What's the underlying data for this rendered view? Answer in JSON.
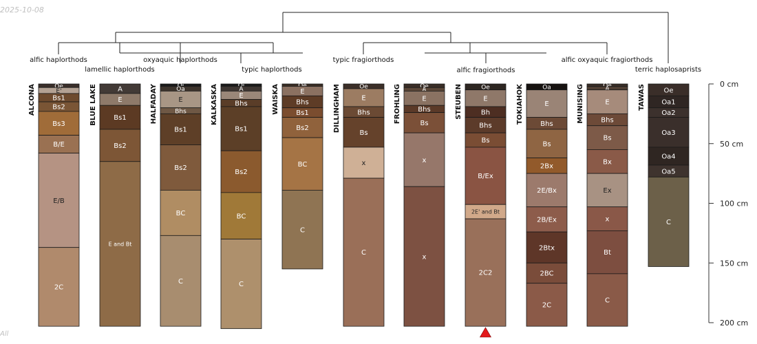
{
  "header": {
    "date": "2025-10-08"
  },
  "footer": {
    "text": "All"
  },
  "chart_data": {
    "type": "soil_profile_sketch",
    "title": "",
    "depth_axis": {
      "range": [
        0,
        200
      ],
      "unit": "cm",
      "ticks": [
        {
          "value": 0,
          "label": "0 cm"
        },
        {
          "value": 50,
          "label": "50 cm"
        },
        {
          "value": 100,
          "label": "100 cm"
        },
        {
          "value": 150,
          "label": "150 cm"
        },
        {
          "value": 200,
          "label": "200 cm"
        }
      ]
    },
    "marker": {
      "profile": "STEUBEN",
      "shape": "triangle",
      "color": "#e31a1c"
    },
    "taxa": [
      "alfic haplorthods",
      "lamellic haplorthods",
      "oxyaquic haplorthods",
      "typic haplorthods",
      "typic fragiorthods",
      "alfic fragiorthods",
      "alfic oxyaquic fragiorthods",
      "terric haplosaprists"
    ],
    "profiles": [
      {
        "name": "ALCONA",
        "horizons": [
          {
            "name": "Oe",
            "top": 0,
            "bottom": 3,
            "color": "#3a2f2a"
          },
          {
            "name": "E'",
            "top": 3,
            "bottom": 8,
            "color": "#b3a193"
          },
          {
            "name": "Bs1",
            "top": 8,
            "bottom": 15,
            "color": "#6d4a2e"
          },
          {
            "name": "Bs2",
            "top": 15,
            "bottom": 23,
            "color": "#7a5535"
          },
          {
            "name": "Bs3",
            "top": 23,
            "bottom": 43,
            "color": "#a06c39"
          },
          {
            "name": "B/E",
            "top": 43,
            "bottom": 58,
            "color": "#9a7152"
          },
          {
            "name": "E/B",
            "top": 58,
            "bottom": 137,
            "color": "#b59383"
          },
          {
            "name": "2C",
            "top": 137,
            "bottom": 203,
            "color": "#b08a6c"
          }
        ]
      },
      {
        "name": "BLUE LAKE",
        "horizons": [
          {
            "name": "A",
            "top": 0,
            "bottom": 8,
            "color": "#423a36"
          },
          {
            "name": "E",
            "top": 8,
            "bottom": 18,
            "color": "#8e7a6a"
          },
          {
            "name": "Bs1",
            "top": 18,
            "bottom": 38,
            "color": "#5c3a23"
          },
          {
            "name": "Bs2",
            "top": 38,
            "bottom": 65,
            "color": "#7d5636"
          },
          {
            "name": "E and Bt",
            "top": 65,
            "bottom": 203,
            "color": "#8e6b47"
          }
        ]
      },
      {
        "name": "HALFADAY",
        "horizons": [
          {
            "name": "Oi",
            "top": 0,
            "bottom": 2,
            "color": "#1a1a1a"
          },
          {
            "name": "Oa",
            "top": 2,
            "bottom": 6,
            "color": "#3d342c"
          },
          {
            "name": "E",
            "top": 6,
            "bottom": 20,
            "color": "#a89685"
          },
          {
            "name": "Bhs",
            "top": 20,
            "bottom": 25,
            "color": "#6f5845"
          },
          {
            "name": "Bs1",
            "top": 25,
            "bottom": 51,
            "color": "#5e3f27"
          },
          {
            "name": "Bs2",
            "top": 51,
            "bottom": 89,
            "color": "#7f5a3c"
          },
          {
            "name": "BC",
            "top": 89,
            "bottom": 127,
            "color": "#b08d63"
          },
          {
            "name": "C",
            "top": 127,
            "bottom": 203,
            "color": "#a88d6f"
          }
        ]
      },
      {
        "name": "KALKASKA",
        "horizons": [
          {
            "name": "Oi",
            "top": 0,
            "bottom": 2,
            "color": "#1a1a1a"
          },
          {
            "name": "A",
            "top": 2,
            "bottom": 6,
            "color": "#3e3632"
          },
          {
            "name": "E",
            "top": 6,
            "bottom": 13,
            "color": "#9a8779"
          },
          {
            "name": "Bhs",
            "top": 13,
            "bottom": 19,
            "color": "#5a3d28"
          },
          {
            "name": "Bs1",
            "top": 19,
            "bottom": 56,
            "color": "#5c3f27"
          },
          {
            "name": "Bs2",
            "top": 56,
            "bottom": 91,
            "color": "#8b5a2e"
          },
          {
            "name": "BC",
            "top": 91,
            "bottom": 130,
            "color": "#a07938"
          },
          {
            "name": "C",
            "top": 130,
            "bottom": 205,
            "color": "#ae906c"
          }
        ]
      },
      {
        "name": "WAISKA",
        "horizons": [
          {
            "name": "Oe",
            "top": 0,
            "bottom": 2,
            "color": "#3a2d24"
          },
          {
            "name": "E",
            "top": 2,
            "bottom": 10,
            "color": "#8b7161"
          },
          {
            "name": "Bhs",
            "top": 10,
            "bottom": 20,
            "color": "#5e3c26"
          },
          {
            "name": "Bs1",
            "top": 20,
            "bottom": 28,
            "color": "#7b4d2f"
          },
          {
            "name": "Bs2",
            "top": 28,
            "bottom": 45,
            "color": "#90623c"
          },
          {
            "name": "BC",
            "top": 45,
            "bottom": 89,
            "color": "#a57445"
          },
          {
            "name": "C",
            "top": 89,
            "bottom": 155,
            "color": "#8f7453"
          }
        ]
      },
      {
        "name": "DILLINGHAM",
        "horizons": [
          {
            "name": "Oe",
            "top": 0,
            "bottom": 4,
            "color": "#3b2f28"
          },
          {
            "name": "E",
            "top": 4,
            "bottom": 19,
            "color": "#9c7c62"
          },
          {
            "name": "Bhs",
            "top": 19,
            "bottom": 28,
            "color": "#6b4a34"
          },
          {
            "name": "Bs",
            "top": 28,
            "bottom": 53,
            "color": "#65422b"
          },
          {
            "name": "x",
            "top": 53,
            "bottom": 79,
            "color": "#cfb096"
          },
          {
            "name": "C",
            "top": 79,
            "bottom": 203,
            "color": "#9a6f58"
          }
        ]
      },
      {
        "name": "FROHLING",
        "horizons": [
          {
            "name": "Oe",
            "top": 0,
            "bottom": 3,
            "color": "#3a2e27"
          },
          {
            "name": "A",
            "top": 3,
            "bottom": 6,
            "color": "#5a4637"
          },
          {
            "name": "E",
            "top": 6,
            "bottom": 18,
            "color": "#8a7262"
          },
          {
            "name": "Bhs",
            "top": 18,
            "bottom": 24,
            "color": "#5b3a28"
          },
          {
            "name": "Bs",
            "top": 24,
            "bottom": 41,
            "color": "#7b5038"
          },
          {
            "name": "x",
            "top": 41,
            "bottom": 86,
            "color": "#96776a"
          },
          {
            "name": "x",
            "top": 86,
            "bottom": 203,
            "color": "#7d5142"
          }
        ]
      },
      {
        "name": "STEUBEN",
        "horizons": [
          {
            "name": "Oe",
            "top": 0,
            "bottom": 5,
            "color": "#2d2621"
          },
          {
            "name": "E",
            "top": 5,
            "bottom": 19,
            "color": "#8f7869"
          },
          {
            "name": "Bh",
            "top": 19,
            "bottom": 28,
            "color": "#4d2e22"
          },
          {
            "name": "Bhs",
            "top": 28,
            "bottom": 41,
            "color": "#5c3b2a"
          },
          {
            "name": "Bs",
            "top": 41,
            "bottom": 53,
            "color": "#7a4d34"
          },
          {
            "name": "B/Ex",
            "top": 53,
            "bottom": 101,
            "color": "#8a5443"
          },
          {
            "name": "2E' and Bt",
            "top": 101,
            "bottom": 113,
            "color": "#d1a98a"
          },
          {
            "name": "2C2",
            "top": 113,
            "bottom": 203,
            "color": "#99705a"
          }
        ]
      },
      {
        "name": "TOKIAHOK",
        "horizons": [
          {
            "name": "Oa",
            "top": 0,
            "bottom": 5,
            "color": "#161210"
          },
          {
            "name": "E",
            "top": 5,
            "bottom": 28,
            "color": "#9a8476"
          },
          {
            "name": "Bhs",
            "top": 28,
            "bottom": 38,
            "color": "#6c4a36"
          },
          {
            "name": "Bs",
            "top": 38,
            "bottom": 62,
            "color": "#8f6543"
          },
          {
            "name": "2Bx",
            "top": 62,
            "bottom": 75,
            "color": "#925a2b"
          },
          {
            "name": "2E/Bx",
            "top": 75,
            "bottom": 103,
            "color": "#9c7a6c"
          },
          {
            "name": "2B/Ex",
            "top": 103,
            "bottom": 124,
            "color": "#8d5c4b"
          },
          {
            "name": "2Btx",
            "top": 124,
            "bottom": 150,
            "color": "#5e3628"
          },
          {
            "name": "2BC",
            "top": 150,
            "bottom": 167,
            "color": "#7a4c3a"
          },
          {
            "name": "2C",
            "top": 167,
            "bottom": 203,
            "color": "#8b5a48"
          }
        ]
      },
      {
        "name": "MUNISING",
        "horizons": [
          {
            "name": "Oe",
            "top": 0,
            "bottom": 2,
            "color": "#3a2e27"
          },
          {
            "name": "A",
            "top": 2,
            "bottom": 5,
            "color": "#4e3e33"
          },
          {
            "name": "E",
            "top": 5,
            "bottom": 25,
            "color": "#a68b7b"
          },
          {
            "name": "Bhs",
            "top": 25,
            "bottom": 35,
            "color": "#6d4a38"
          },
          {
            "name": "Bs",
            "top": 35,
            "bottom": 55,
            "color": "#7d5a48"
          },
          {
            "name": "Bx",
            "top": 55,
            "bottom": 75,
            "color": "#8a5a48"
          },
          {
            "name": "Ex",
            "top": 75,
            "bottom": 103,
            "color": "#a89283"
          },
          {
            "name": "x",
            "top": 103,
            "bottom": 123,
            "color": "#8a5848"
          },
          {
            "name": "Bt",
            "top": 123,
            "bottom": 159,
            "color": "#7d4e40"
          },
          {
            "name": "C",
            "top": 159,
            "bottom": 203,
            "color": "#8a5a48"
          }
        ]
      },
      {
        "name": "TAWAS",
        "horizons": [
          {
            "name": "Oe",
            "top": 0,
            "bottom": 10,
            "color": "#3a2e29"
          },
          {
            "name": "Oa1",
            "top": 10,
            "bottom": 20,
            "color": "#2f2623"
          },
          {
            "name": "Oa2",
            "top": 20,
            "bottom": 28,
            "color": "#3c312d"
          },
          {
            "name": "Oa3",
            "top": 28,
            "bottom": 53,
            "color": "#3a2f2b"
          },
          {
            "name": "Oa4",
            "top": 53,
            "bottom": 68,
            "color": "#2f2622"
          },
          {
            "name": "Oa5",
            "top": 68,
            "bottom": 78,
            "color": "#3e332e"
          },
          {
            "name": "C",
            "top": 78,
            "bottom": 153,
            "color": "#6c6049"
          }
        ]
      }
    ]
  }
}
